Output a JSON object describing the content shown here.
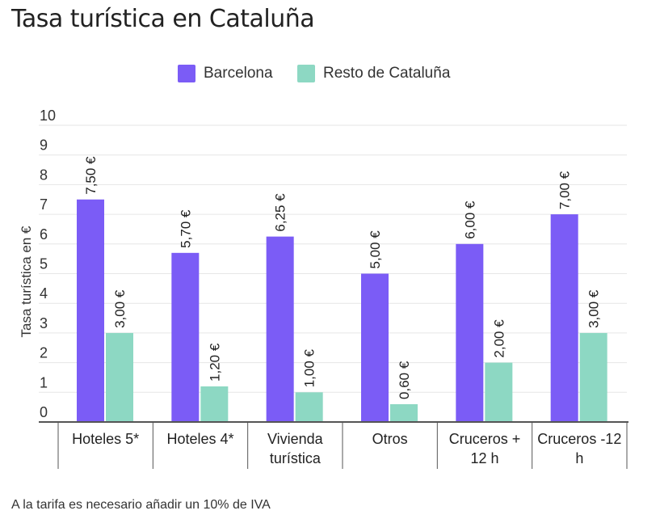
{
  "title": "Tasa turística en Cataluña",
  "legend": [
    {
      "label": "Barcelona",
      "color": "#7b5cf6"
    },
    {
      "label": "Resto de Cataluña",
      "color": "#8dd8c3"
    }
  ],
  "note": "A la tarifa es necesario añadir un 10% de IVA",
  "chart_data": {
    "type": "bar",
    "ylabel": "Tasa turística en €",
    "ylim": [
      0,
      10
    ],
    "yticks": [
      "0",
      "1",
      "2",
      "3",
      "4",
      "5",
      "6",
      "7",
      "8",
      "9",
      "10"
    ],
    "grid": true,
    "legend_position": "top-center",
    "categories": [
      [
        "Hoteles 5*"
      ],
      [
        "Hoteles 4*"
      ],
      [
        "Vivienda",
        "turística"
      ],
      [
        "Otros"
      ],
      [
        "Cruceros +",
        "12 h"
      ],
      [
        "Cruceros -12",
        "h"
      ]
    ],
    "series": [
      {
        "name": "Barcelona",
        "color": "#7b5cf6",
        "values": [
          7.5,
          5.7,
          6.25,
          5.0,
          6.0,
          7.0
        ],
        "labels": [
          "7,50 €",
          "5,70 €",
          "6,25 €",
          "5,00 €",
          "6,00 €",
          "7,00 €"
        ]
      },
      {
        "name": "Resto de Cataluña",
        "color": "#8dd8c3",
        "values": [
          3.0,
          1.2,
          1.0,
          0.6,
          2.0,
          3.0
        ],
        "labels": [
          "3,00 €",
          "1,20 €",
          "1,00 €",
          "0,60 €",
          "2,00 €",
          "3,00 €"
        ]
      }
    ]
  }
}
